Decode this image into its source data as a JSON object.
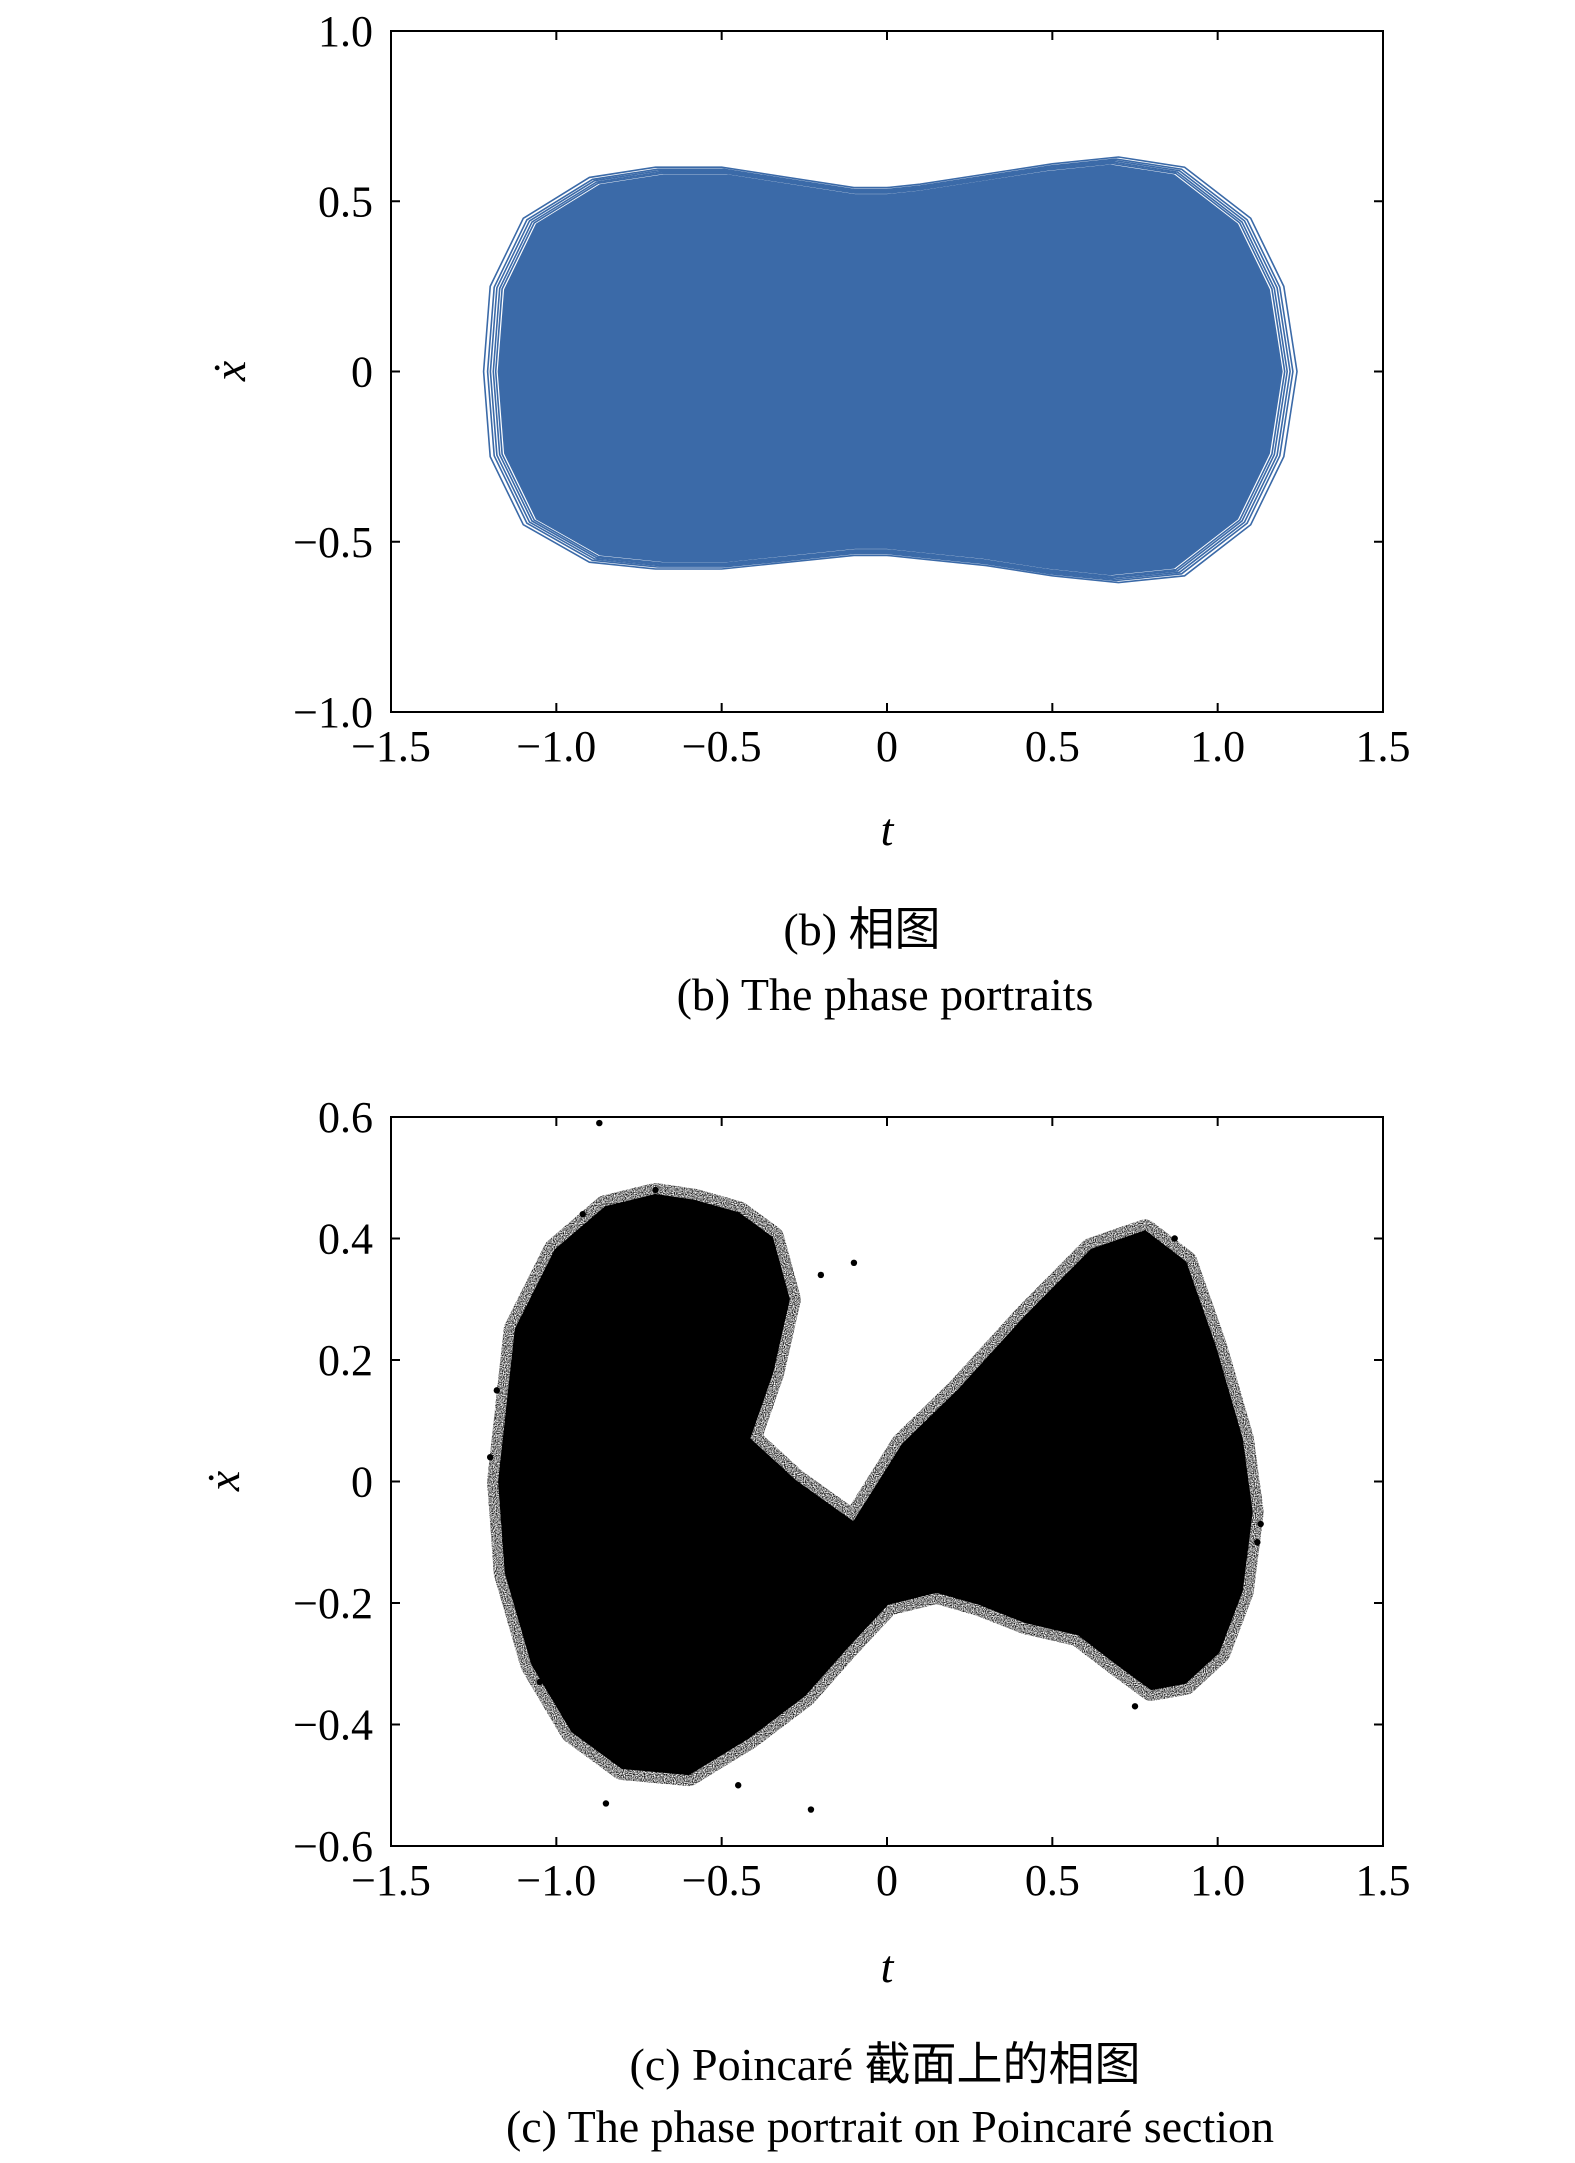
{
  "chart_data": [
    {
      "type": "line",
      "caption_cn": "(b) 相图",
      "caption_en": "(b) The phase portraits",
      "xlabel": "t",
      "ylabel": "ẋ",
      "xlim": [
        -1.5,
        1.5
      ],
      "ylim": [
        -1.0,
        1.0
      ],
      "xticks": [
        -1.5,
        -1.0,
        -0.5,
        0,
        0.5,
        1.0,
        1.5
      ],
      "xtick_labels": [
        "−1.5",
        "−1.0",
        "−0.5",
        "0",
        "0.5",
        "1.0",
        "1.5"
      ],
      "yticks": [
        -1.0,
        -0.5,
        0,
        0.5,
        1.0
      ],
      "ytick_labels": [
        "−1.0",
        "−0.5",
        "0",
        "0.5",
        "1.0"
      ],
      "grid": false,
      "series": [
        {
          "color": "#3b6aa8",
          "x": [
            -1.22,
            -1.2,
            -1.1,
            -0.9,
            -0.7,
            -0.5,
            -0.3,
            -0.1,
            0.0,
            0.1,
            0.3,
            0.5,
            0.7,
            0.9,
            1.1,
            1.2,
            1.24,
            1.2,
            1.1,
            0.9,
            0.7,
            0.5,
            0.3,
            0.1,
            0.0,
            -0.1,
            -0.3,
            -0.5,
            -0.7,
            -0.9,
            -1.1,
            -1.2,
            -1.22
          ],
          "y": [
            0.0,
            0.25,
            0.45,
            0.57,
            0.6,
            0.6,
            0.57,
            0.54,
            0.54,
            0.55,
            0.58,
            0.61,
            0.63,
            0.6,
            0.45,
            0.25,
            0.0,
            -0.25,
            -0.45,
            -0.6,
            -0.62,
            -0.6,
            -0.57,
            -0.55,
            -0.54,
            -0.54,
            -0.56,
            -0.58,
            -0.58,
            -0.56,
            -0.45,
            -0.25,
            0.0
          ]
        }
      ]
    },
    {
      "type": "scatter",
      "caption_cn": "(c) Poincaré 截面上的相图",
      "caption_en": "(c) The phase portrait on Poincaré section",
      "xlabel": "t",
      "ylabel": "ẋ",
      "xlim": [
        -1.5,
        1.5
      ],
      "ylim": [
        -0.6,
        0.6
      ],
      "xticks": [
        -1.5,
        -1.0,
        -0.5,
        0,
        0.5,
        1.0,
        1.5
      ],
      "xtick_labels": [
        "−1.5",
        "−1.0",
        "−0.5",
        "0",
        "0.5",
        "1.0",
        "1.5"
      ],
      "yticks": [
        -0.6,
        -0.4,
        -0.2,
        0,
        0.2,
        0.4,
        0.6
      ],
      "ytick_labels": [
        "−0.6",
        "−0.4",
        "−0.2",
        "0",
        "0.2",
        "0.4",
        "0.6"
      ],
      "grid": false,
      "marker_color": "#000000",
      "regions": [
        {
          "x": [
            -1.17,
            -1.12,
            -1.0,
            -0.85,
            -0.7,
            -0.58,
            -0.45,
            -0.35,
            -0.3,
            -0.35,
            -0.42,
            -0.28,
            -0.1,
            0.05,
            0.22,
            0.42,
            0.62,
            0.78,
            0.9,
            0.99,
            1.07,
            1.1,
            1.07,
            1.0,
            0.9,
            0.8,
            0.7,
            0.58,
            0.42,
            0.28,
            0.15,
            0.0,
            -0.12,
            -0.25,
            -0.42,
            -0.6,
            -0.8,
            -0.95,
            -1.07,
            -1.15,
            -1.17
          ],
          "y": [
            0.0,
            0.25,
            0.38,
            0.45,
            0.47,
            0.46,
            0.44,
            0.4,
            0.3,
            0.18,
            0.07,
            0.0,
            -0.07,
            0.06,
            0.15,
            0.27,
            0.38,
            0.41,
            0.36,
            0.22,
            0.07,
            -0.05,
            -0.18,
            -0.28,
            -0.33,
            -0.34,
            -0.3,
            -0.25,
            -0.23,
            -0.2,
            -0.18,
            -0.2,
            -0.27,
            -0.35,
            -0.42,
            -0.48,
            -0.47,
            -0.41,
            -0.3,
            -0.15,
            0.0
          ]
        }
      ],
      "outliers": {
        "x": [
          -0.87,
          -0.23,
          -0.1,
          -1.2,
          1.13,
          -0.45,
          -1.05,
          -0.7,
          0.87,
          1.12,
          -0.92,
          -0.85,
          0.75,
          0.92,
          -1.18,
          -0.2
        ],
        "y": [
          0.59,
          -0.54,
          0.36,
          0.04,
          -0.07,
          -0.5,
          -0.33,
          0.48,
          0.4,
          -0.1,
          0.44,
          -0.53,
          -0.37,
          0.3,
          0.15,
          0.34
        ]
      }
    }
  ]
}
